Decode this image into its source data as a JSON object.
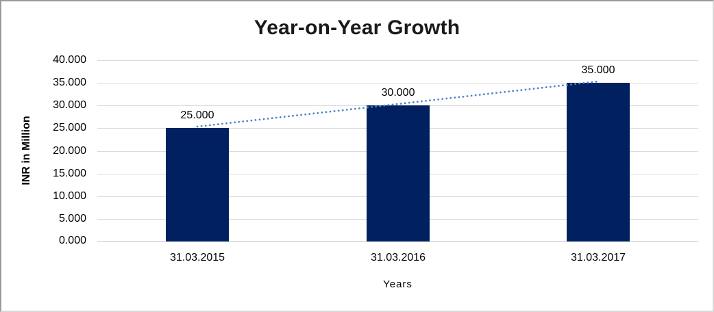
{
  "chart_data": {
    "type": "bar",
    "title": "Year-on-Year Growth",
    "xlabel": "Years",
    "ylabel": "INR in Million",
    "categories": [
      "31.03.2015",
      "31.03.2016",
      "31.03.2017"
    ],
    "values": [
      25,
      30,
      35
    ],
    "value_labels": [
      "25.000",
      "30.000",
      "35.000"
    ],
    "ylim": [
      0,
      40
    ],
    "ytick_step": 5,
    "ytick_labels": [
      "0.000",
      "5.000",
      "10.000",
      "15.000",
      "20.000",
      "25.000",
      "30.000",
      "35.000",
      "40.000"
    ],
    "grid": true,
    "legend": false,
    "trendline": {
      "type": "linear",
      "style": "dotted",
      "from_value": 25,
      "to_value": 35
    },
    "colors": {
      "bar": "#002060",
      "trendline": "#4a86c8",
      "gridline": "#d9d9d9",
      "axis_line": "#c6c6c6",
      "text": "#000000",
      "title_text": "#1a1a1a"
    }
  }
}
